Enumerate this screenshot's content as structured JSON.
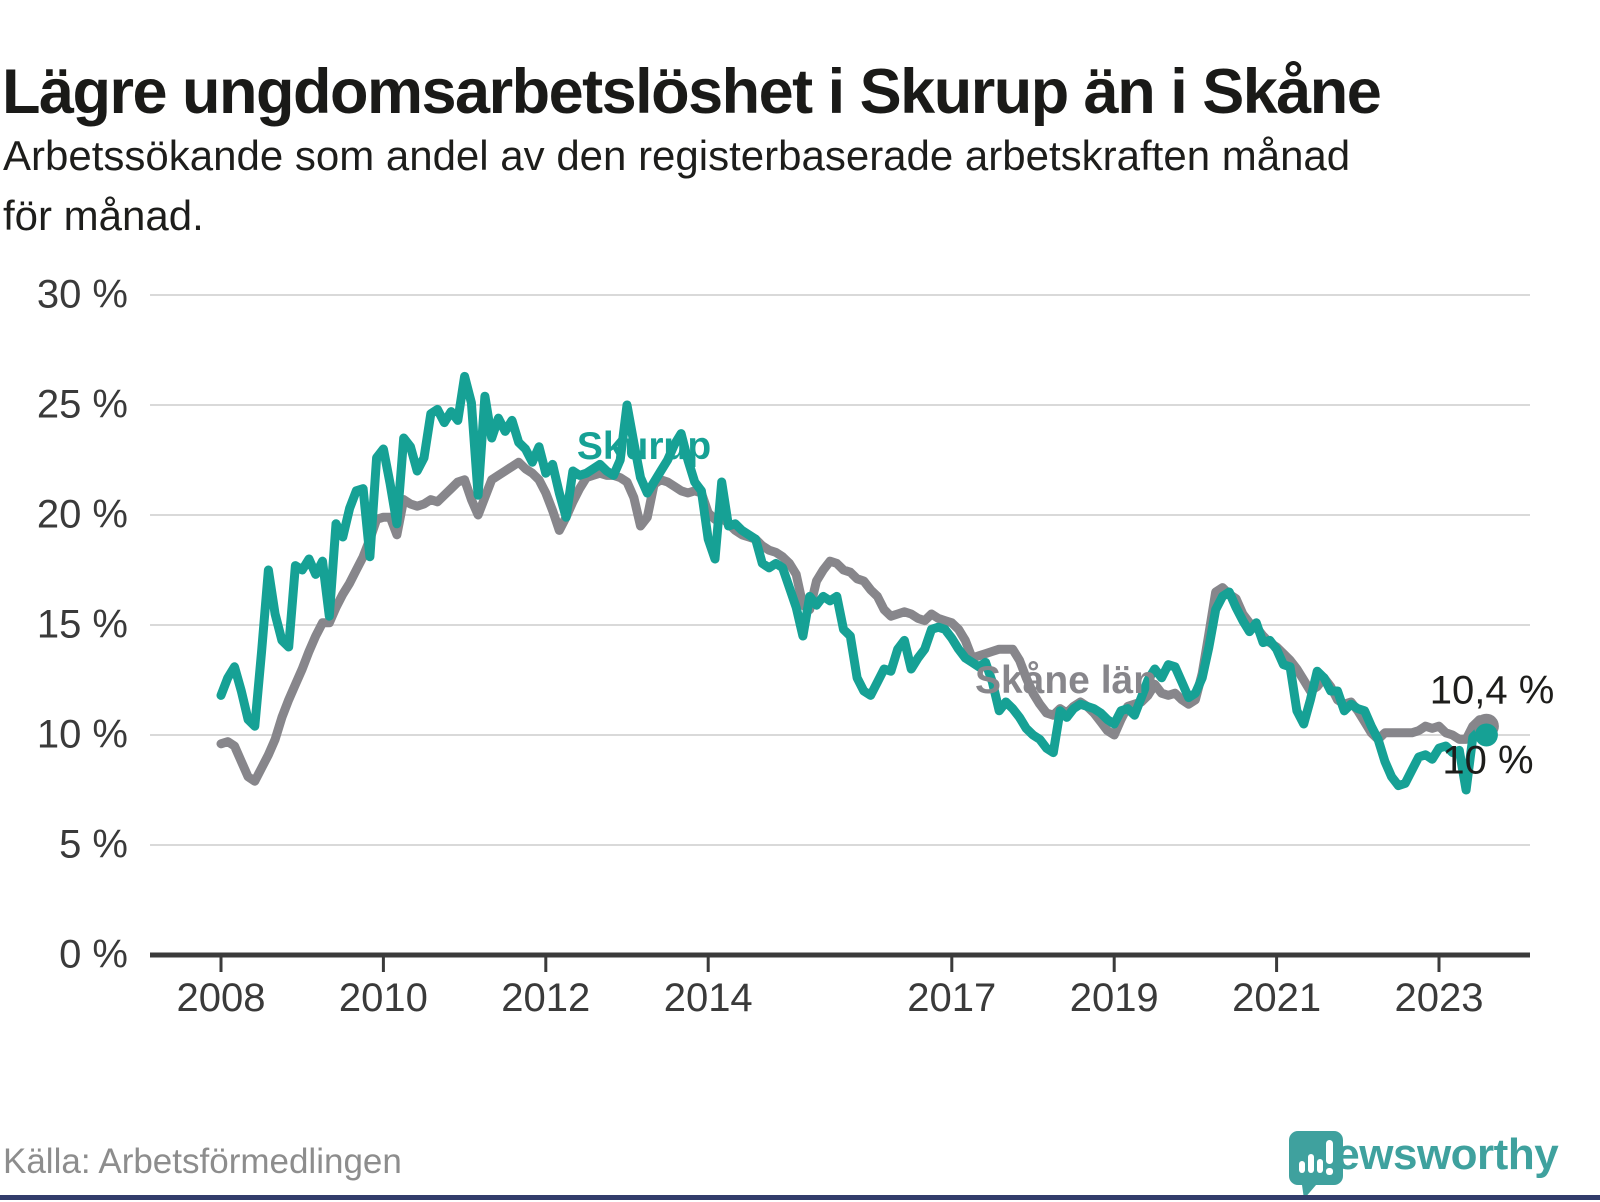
{
  "chart_data": {
    "type": "line",
    "title": "Lägre ungdomsarbetslöshet i Skurup än i Skåne",
    "subtitle_lines": [
      "Arbetssökande som andel av den registerbaserade arbetskraften månad",
      "för månad."
    ],
    "xlabel": "",
    "ylabel": "",
    "ylim": [
      0,
      30
    ],
    "xlim_years": [
      2008.0,
      2023.667
    ],
    "grid": "horizontal",
    "legend_position": "inline-labels",
    "y_ticks": [
      0,
      5,
      10,
      15,
      20,
      25,
      30
    ],
    "y_tick_labels": [
      "0 %",
      "5 %",
      "10 %",
      "15 %",
      "20 %",
      "25 %",
      "30 %"
    ],
    "x_tick_years": [
      2008,
      2010,
      2012,
      2014,
      2017,
      2019,
      2021,
      2023
    ],
    "x_tick_labels": [
      "2008",
      "2010",
      "2012",
      "2014",
      "2017",
      "2019",
      "2021",
      "2023"
    ],
    "x_start_year": 2008,
    "x_step_years": 0.0833333,
    "colors": {
      "skurup": "#16a195",
      "skane": "#87868b",
      "grid": "#d9d9d9",
      "axis": "#3b3b3b",
      "logo": "#3fa19e",
      "bottom_bar": "#323c6b"
    },
    "series": [
      {
        "name": "Skåne län",
        "color": "#87868b",
        "end_label": "10,4 %",
        "end_value": 10.4,
        "values": [
          9.6,
          9.7,
          9.5,
          8.8,
          8.1,
          7.9,
          8.5,
          9.1,
          9.8,
          10.8,
          11.6,
          12.3,
          13.0,
          13.8,
          14.5,
          15.1,
          15.1,
          15.8,
          16.4,
          16.9,
          17.5,
          18.1,
          18.9,
          19.8,
          19.9,
          19.9,
          19.1,
          20.7,
          20.5,
          20.4,
          20.5,
          20.7,
          20.6,
          20.9,
          21.2,
          21.5,
          21.6,
          20.7,
          20.0,
          20.8,
          21.6,
          21.8,
          22.0,
          22.2,
          22.4,
          22.1,
          21.9,
          21.6,
          21.0,
          20.2,
          19.3,
          19.9,
          20.6,
          21.2,
          21.7,
          21.8,
          21.9,
          21.8,
          21.8,
          21.7,
          21.5,
          20.8,
          19.5,
          19.9,
          21.4,
          21.6,
          21.5,
          21.3,
          21.1,
          21.0,
          21.1,
          21.0,
          20.1,
          19.8,
          19.9,
          19.6,
          19.3,
          19.1,
          19.0,
          18.9,
          18.6,
          18.4,
          18.3,
          18.1,
          17.8,
          17.3,
          15.9,
          15.7,
          17.0,
          17.5,
          17.9,
          17.8,
          17.5,
          17.4,
          17.1,
          17.0,
          16.6,
          16.3,
          15.7,
          15.4,
          15.5,
          15.6,
          15.5,
          15.3,
          15.2,
          15.5,
          15.3,
          15.2,
          15.1,
          14.8,
          14.3,
          13.5,
          13.6,
          13.7,
          13.8,
          13.9,
          13.9,
          13.9,
          13.4,
          12.6,
          11.9,
          11.4,
          11.0,
          10.9,
          11.2,
          11.0,
          11.3,
          11.5,
          11.3,
          11.0,
          10.6,
          10.2,
          10.0,
          10.7,
          11.3,
          11.4,
          11.5,
          11.8,
          12.3,
          11.9,
          11.8,
          11.9,
          11.6,
          11.4,
          11.6,
          12.8,
          14.6,
          16.5,
          16.7,
          16.4,
          16.2,
          15.5,
          15.1,
          14.9,
          14.5,
          14.2,
          14.0,
          13.7,
          13.4,
          13.0,
          12.5,
          12.0,
          12.2,
          12.6,
          12.2,
          11.6,
          11.4,
          11.5,
          11.1,
          10.6,
          10.1,
          9.8,
          10.1,
          10.1,
          10.1,
          10.1,
          10.1,
          10.2,
          10.4,
          10.3,
          10.4,
          10.1,
          10.0,
          9.8,
          9.8,
          10.4,
          10.7,
          10.4
        ]
      },
      {
        "name": "Skurup",
        "color": "#16a195",
        "end_label": "10 %",
        "end_value": 10.0,
        "values": [
          11.8,
          12.6,
          13.1,
          12.0,
          10.7,
          10.4,
          13.8,
          17.5,
          15.5,
          14.3,
          14.0,
          17.7,
          17.5,
          18.0,
          17.3,
          17.9,
          15.4,
          19.6,
          19.0,
          20.3,
          21.1,
          21.2,
          18.1,
          22.6,
          23.0,
          21.4,
          19.6,
          23.5,
          23.1,
          22.0,
          22.6,
          24.6,
          24.8,
          24.2,
          24.7,
          24.3,
          26.3,
          25.1,
          20.9,
          25.4,
          23.5,
          24.4,
          23.8,
          24.3,
          23.3,
          23.0,
          22.4,
          23.1,
          21.9,
          22.3,
          21.0,
          19.9,
          22.0,
          21.8,
          21.9,
          22.1,
          22.3,
          22.0,
          21.8,
          22.5,
          25.0,
          23.3,
          21.7,
          21.0,
          21.5,
          22.0,
          22.5,
          23.2,
          23.7,
          22.5,
          21.5,
          21.1,
          18.9,
          18.0,
          21.5,
          19.5,
          19.6,
          19.3,
          19.1,
          18.9,
          17.8,
          17.6,
          17.8,
          17.6,
          16.7,
          15.8,
          14.5,
          16.3,
          15.9,
          16.3,
          16.1,
          16.3,
          14.8,
          14.5,
          12.6,
          12.0,
          11.8,
          12.4,
          13.0,
          12.9,
          13.9,
          14.3,
          13.0,
          13.5,
          13.9,
          14.8,
          14.9,
          14.8,
          14.4,
          13.9,
          13.5,
          13.3,
          13.1,
          13.3,
          12.4,
          11.1,
          11.5,
          11.2,
          10.8,
          10.3,
          10.0,
          9.8,
          9.4,
          9.2,
          11.1,
          10.8,
          11.2,
          11.4,
          11.3,
          11.2,
          11.0,
          10.7,
          10.5,
          11.1,
          11.2,
          10.9,
          11.7,
          12.5,
          13.0,
          12.6,
          13.2,
          13.1,
          12.4,
          11.7,
          11.9,
          12.6,
          14.0,
          15.7,
          16.3,
          16.5,
          15.8,
          15.2,
          14.7,
          15.1,
          14.2,
          14.3,
          13.9,
          13.2,
          13.1,
          11.1,
          10.5,
          11.6,
          12.9,
          12.6,
          12.0,
          12.0,
          11.1,
          11.4,
          11.2,
          11.1,
          10.4,
          9.8,
          8.8,
          8.1,
          7.7,
          7.8,
          8.4,
          9.0,
          9.1,
          8.9,
          9.4,
          9.5,
          9.2,
          9.3,
          7.5,
          9.9,
          10.2,
          10.0
        ]
      }
    ],
    "annotations": {
      "skurup_inline_label": "Skurup",
      "skane_inline_label": "Skåne län",
      "end_label_top": "10,4 %",
      "end_label_bottom": "10 %"
    }
  },
  "footer": {
    "source": "Källa: Arbetsförmedlingen",
    "logo_text": "Newsworthy"
  }
}
